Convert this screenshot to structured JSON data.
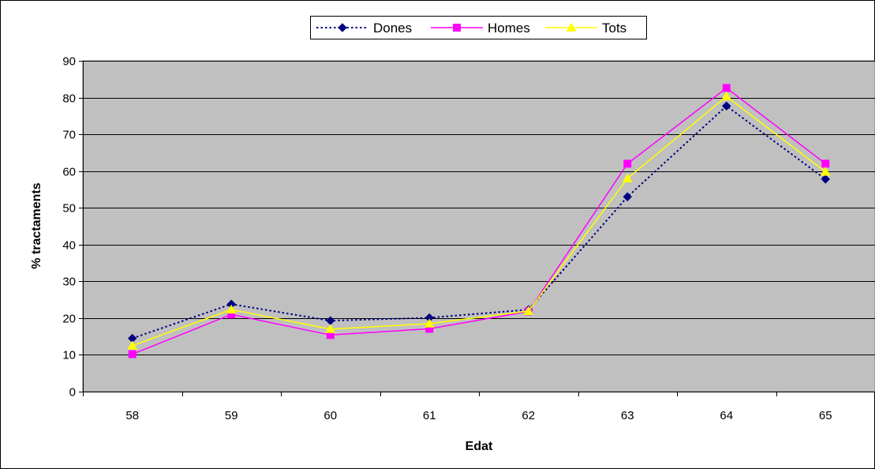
{
  "chart_data": {
    "type": "line",
    "title": "",
    "xlabel": "Edat",
    "ylabel": "% tractaments",
    "categories": [
      "58",
      "59",
      "60",
      "61",
      "62",
      "63",
      "64",
      "65"
    ],
    "ylim": [
      0,
      90
    ],
    "yticks": [
      0,
      10,
      20,
      30,
      40,
      50,
      60,
      70,
      80,
      90
    ],
    "grid": true,
    "legend_position": "top-center",
    "series": [
      {
        "name": "Dones",
        "values": [
          14.5,
          23.8,
          19.3,
          20.1,
          22.3,
          53.0,
          77.7,
          57.8
        ],
        "color": "#000080",
        "line_style": "dotted",
        "marker": "diamond"
      },
      {
        "name": "Homes",
        "values": [
          10.2,
          21.0,
          15.4,
          17.1,
          21.8,
          62.0,
          82.6,
          62.0
        ],
        "color": "#FF00FF",
        "line_style": "solid",
        "marker": "square"
      },
      {
        "name": "Tots",
        "values": [
          12.5,
          22.3,
          17.0,
          18.5,
          21.9,
          58.0,
          80.3,
          59.8
        ],
        "color": "#FFFF00",
        "line_style": "solid",
        "marker": "triangle"
      }
    ],
    "plot_background": "#C0C0C0",
    "gridline_color": "#000000",
    "border_color": "#000000"
  }
}
